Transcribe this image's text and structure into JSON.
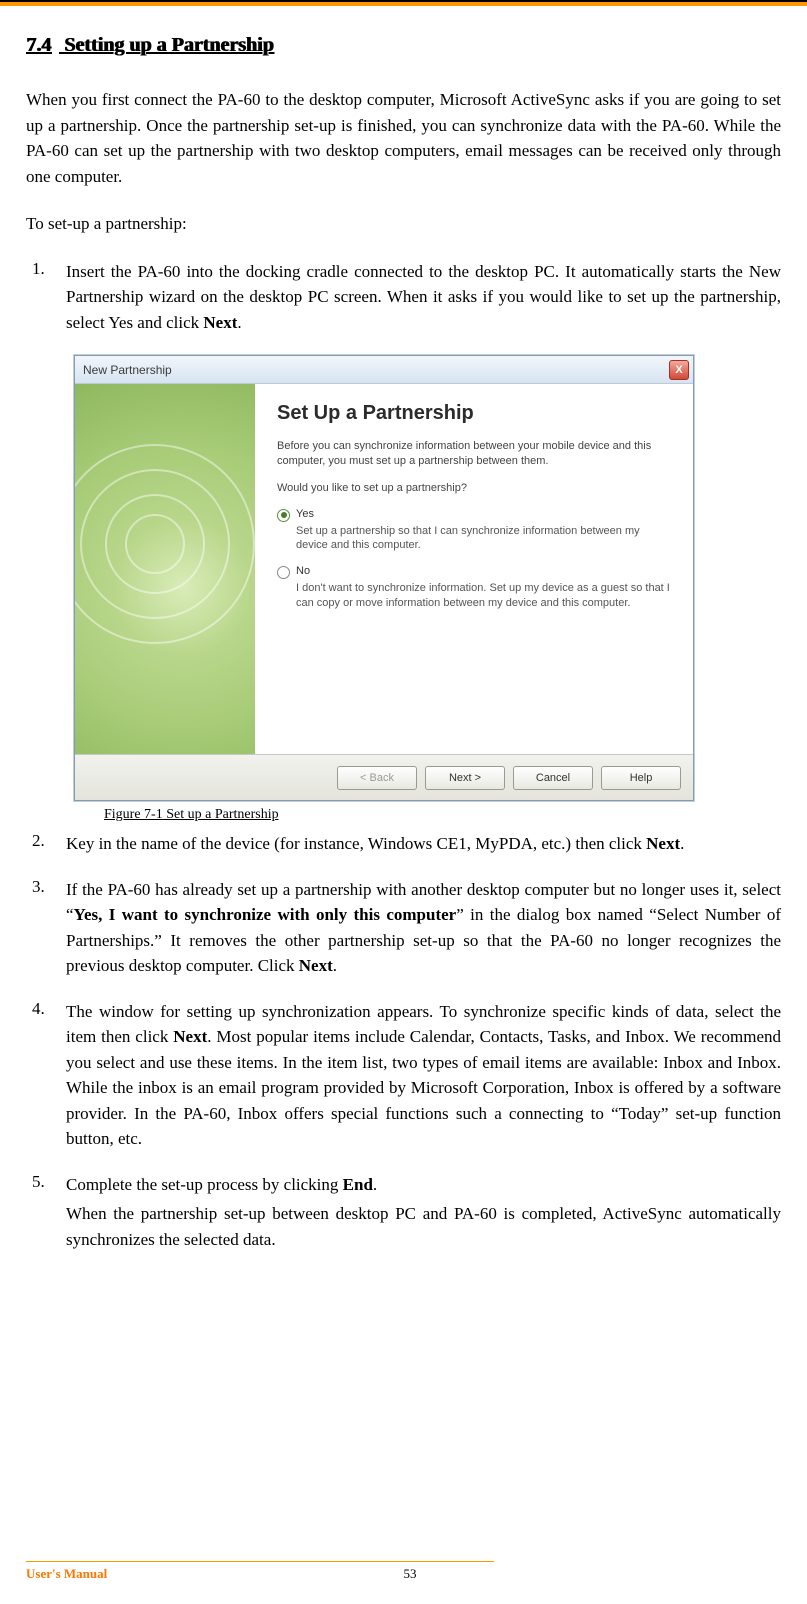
{
  "section": {
    "number": "7.4",
    "title": "Setting up a Partnership"
  },
  "intro": "When you first connect the PA-60 to the desktop computer, Microsoft ActiveSync asks if you are going to set up a partnership. Once the partnership set-up is finished, you can synchronize data with the PA-60. While the PA-60 can set up the partnership with two desktop computers, email messages can be received only through one computer.",
  "lead": "To set-up a partnership:",
  "steps": [
    {
      "num": "1.",
      "body_pre": "Insert the PA-60 into the docking cradle connected to the desktop PC. It automatically starts the New Partnership wizard on the desktop PC screen. When it asks if you would like to set up the partnership, select Yes and click ",
      "bold": "Next",
      "body_post": "."
    },
    {
      "num": "2.",
      "body_pre": "Key in the name of the device (for instance, Windows CE1, MyPDA, etc.) then click ",
      "bold": "Next",
      "body_post": "."
    },
    {
      "num": "3.",
      "body_pre": "If the PA-60 has already set up a partnership with another desktop computer but no longer uses it, select “",
      "bold": "Yes, I want to synchronize with only this computer",
      "body_post": "” in the dialog box named “Select Number of Partnerships.” It removes the other partnership set-up so that the PA-60 no longer recognizes the previous desktop computer. Click ",
      "bold2": "Next",
      "body_post2": "."
    },
    {
      "num": "4.",
      "body_pre": "The window for setting up synchronization appears. To synchronize specific kinds of data, select the item then click ",
      "bold": "Next",
      "body_post": ". Most popular items include Calendar, Contacts, Tasks, and Inbox. We recommend you select and use these items. In the item list, two types of email items are available: Inbox and Inbox. While the inbox is an email program provided by Microsoft Corporation, Inbox is offered by a software provider. In the PA-60, Inbox offers special functions such a connecting to “Today” set-up function button, etc."
    },
    {
      "num": "5.",
      "body_pre": "Complete the set-up process by clicking ",
      "bold": "End",
      "body_post": ".",
      "extra": "When the partnership set-up between desktop PC and PA-60 is completed, ActiveSync automatically synchronizes the selected data."
    }
  ],
  "dialog": {
    "title": "New Partnership",
    "close": "X",
    "heading": "Set Up a Partnership",
    "intro": "Before you can synchronize information between your mobile device and this computer, you must set up a partnership between them.",
    "question": "Would you like to set up a partnership?",
    "yes_label": "Yes",
    "yes_desc": "Set up a partnership so that I can synchronize information between my device and this computer.",
    "no_label": "No",
    "no_desc": "I don't want to synchronize information. Set up my device as a guest so that I can copy or move information between my device and this computer.",
    "buttons": {
      "back": "< Back",
      "next": "Next >",
      "cancel": "Cancel",
      "help": "Help"
    }
  },
  "figure_caption": "Figure 7-1 Set up a Partnership",
  "footer": {
    "left": "User's Manual",
    "page": "53"
  }
}
